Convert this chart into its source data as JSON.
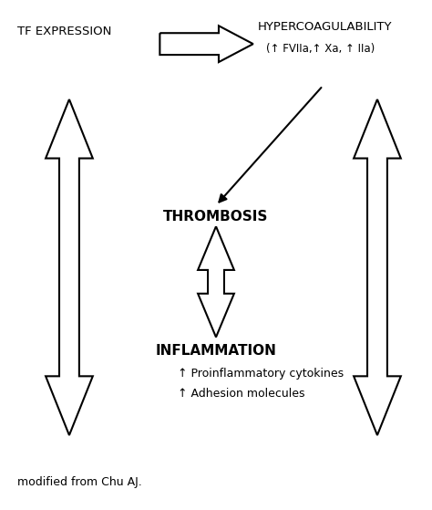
{
  "background_color": "#ffffff",
  "text_color": "#000000",
  "tf_expression_label": "TF EXPRESSION",
  "hypercoag_label": "HYPERCOAGULABILITY",
  "hypercoag_sub": "(↑ FVIIa,↑ Xa, ↑ IIa)",
  "thrombosis_label": "THROMBOSIS",
  "inflammation_label": "INFLAMMATION",
  "proinflam_label": "↑ Proinflammatory cytokines",
  "adhesion_label": "↑ Adhesion molecules",
  "modified_label": "modified from Chu AJ.",
  "arrow_color": "#000000",
  "arrow_linewidth": 1.5,
  "figsize": [
    4.74,
    5.59
  ],
  "dpi": 100
}
